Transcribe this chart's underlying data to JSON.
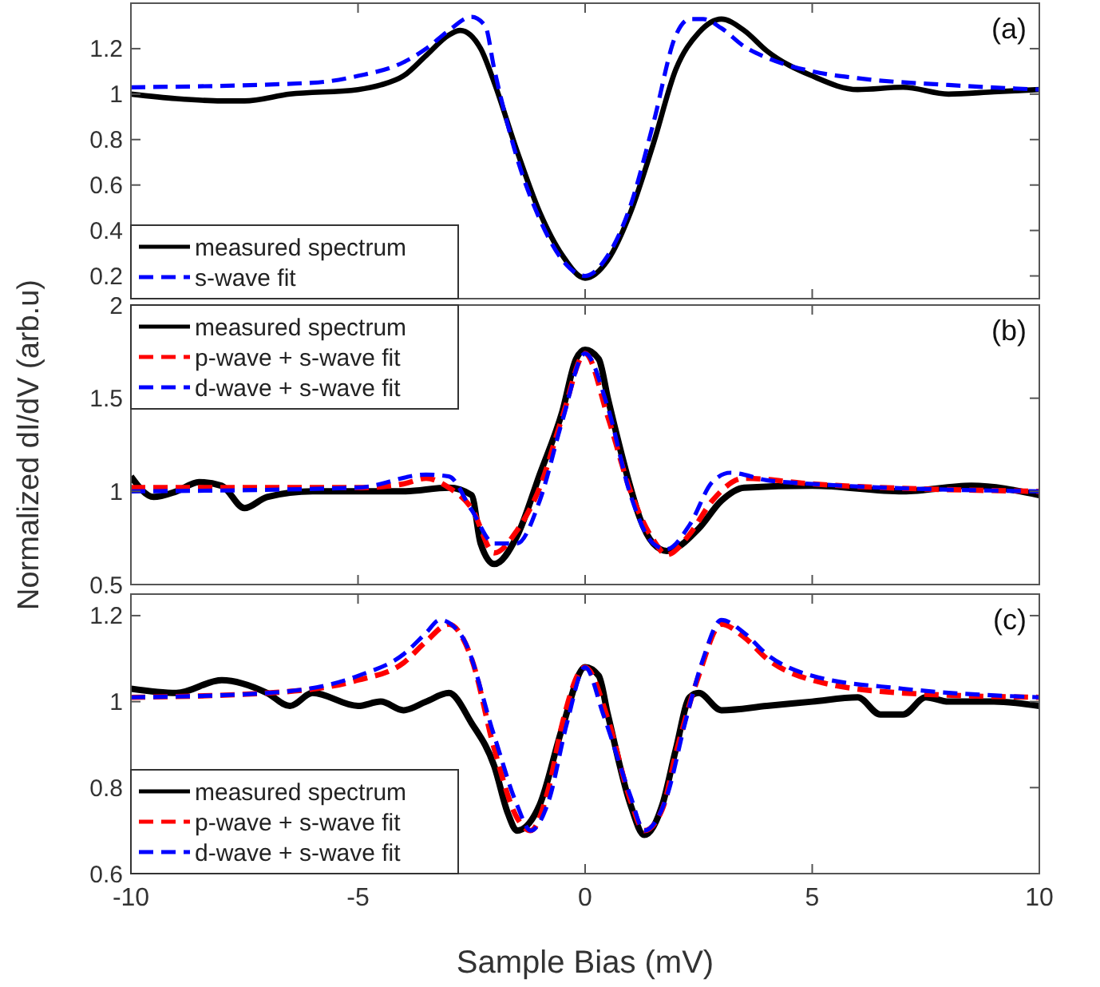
{
  "chart_data": [
    {
      "type": "line",
      "annotations": [
        "(a)"
      ],
      "xlim": [
        -10,
        10
      ],
      "xticks": [
        {
          "value": -5,
          "label": null
        },
        {
          "value": 0,
          "label": null
        },
        {
          "value": 5,
          "label": null
        }
      ],
      "ylim": [
        0.1,
        1.4
      ],
      "yticks": [
        0.2,
        0.4,
        0.6,
        0.8,
        {
          "value": 1,
          "label": "1"
        },
        1.2
      ],
      "tick_labels": "y",
      "legend": "bottom left",
      "grid": false,
      "series": [
        {
          "name": "measured spectrum",
          "color": "#000000",
          "line_style": "solid",
          "x": [
            -10,
            -9,
            -8,
            -7.5,
            -6.5,
            -5,
            -4.5,
            -4,
            -3.5,
            -3,
            -2.75,
            -2.3,
            -2,
            -1.5,
            -1,
            -0.5,
            0,
            0.5,
            1,
            1.5,
            2,
            2.5,
            3,
            3.5,
            4,
            5,
            6,
            7,
            8,
            9,
            10
          ],
          "values": [
            1.0,
            0.98,
            0.97,
            0.97,
            1.0,
            1.02,
            1.04,
            1.08,
            1.17,
            1.26,
            1.28,
            1.2,
            1.05,
            0.75,
            0.48,
            0.29,
            0.19,
            0.27,
            0.48,
            0.78,
            1.11,
            1.27,
            1.33,
            1.28,
            1.19,
            1.08,
            1.02,
            1.03,
            1.0,
            1.01,
            1.02
          ]
        },
        {
          "name": "s-wave fit",
          "color": "#0000ff",
          "line_style": "dashed",
          "x": [
            -10,
            -6,
            -5,
            -4,
            -3.5,
            -3,
            -2.5,
            -2.2,
            -2,
            -1.5,
            -1,
            -0.5,
            0,
            0.5,
            1,
            1.5,
            2,
            2.3,
            2.6,
            3,
            3.5,
            4,
            5,
            6,
            8,
            10
          ],
          "values": [
            1.03,
            1.05,
            1.08,
            1.14,
            1.2,
            1.28,
            1.34,
            1.3,
            1.11,
            0.72,
            0.45,
            0.27,
            0.2,
            0.29,
            0.51,
            0.87,
            1.26,
            1.33,
            1.33,
            1.29,
            1.21,
            1.16,
            1.1,
            1.07,
            1.04,
            1.02
          ]
        }
      ]
    },
    {
      "type": "line",
      "ylabel": "Normalized dI/dV (arb.u)",
      "annotations": [
        "(b)"
      ],
      "xlim": [
        -10,
        10
      ],
      "xticks": [
        {
          "value": -5,
          "label": null
        },
        {
          "value": 0,
          "label": null
        },
        {
          "value": 5,
          "label": null
        }
      ],
      "ylim": [
        0.5,
        2
      ],
      "yticks": [
        0.5,
        1,
        1.5,
        2
      ],
      "tick_labels": "y",
      "legend": "top left",
      "grid": false,
      "series": [
        {
          "name": "measured spectrum",
          "color": "#000000",
          "line_style": "solid",
          "x": [
            -10,
            -9.5,
            -9,
            -8.5,
            -8,
            -7.5,
            -7,
            -6,
            -4,
            -3,
            -2.5,
            -2.3,
            -2,
            -1.5,
            -1,
            -0.5,
            -0.2,
            0,
            0.3,
            0.5,
            1,
            1.2,
            1.5,
            1.8,
            2.5,
            3,
            3.5,
            5,
            7,
            8.5,
            10
          ],
          "values": [
            1.08,
            0.97,
            1.0,
            1.05,
            1.03,
            0.91,
            0.97,
            1.0,
            1.0,
            1.02,
            0.98,
            0.72,
            0.61,
            0.76,
            1.09,
            1.43,
            1.71,
            1.76,
            1.71,
            1.5,
            1.02,
            0.86,
            0.72,
            0.68,
            0.8,
            0.95,
            1.02,
            1.03,
            1.0,
            1.03,
            0.98
          ]
        },
        {
          "name": "p-wave + s-wave fit",
          "color": "#ff0000",
          "line_style": "dashed",
          "x": [
            -10,
            -5,
            -4,
            -3.5,
            -3,
            -2.5,
            -2,
            -1.5,
            -1,
            -0.5,
            0,
            0.5,
            1,
            1.5,
            1.8,
            2.3,
            2.8,
            3.5,
            5,
            10
          ],
          "values": [
            1.02,
            1.02,
            1.04,
            1.07,
            1.02,
            0.91,
            0.67,
            0.79,
            1.02,
            1.4,
            1.74,
            1.4,
            1.0,
            0.74,
            0.66,
            0.77,
            0.95,
            1.07,
            1.04,
            1.0
          ]
        },
        {
          "name": "d-wave + s-wave fit",
          "color": "#0000ff",
          "line_style": "dashed",
          "x": [
            -10,
            -5,
            -3.5,
            -3,
            -2.5,
            -2,
            -1.5,
            -1,
            -0.5,
            0,
            0.5,
            1,
            1.5,
            1.8,
            2.3,
            2.8,
            3.2,
            4,
            5,
            10
          ],
          "values": [
            1.0,
            1.02,
            1.09,
            1.08,
            0.9,
            0.72,
            0.72,
            0.95,
            1.38,
            1.74,
            1.45,
            0.98,
            0.72,
            0.69,
            0.82,
            1.05,
            1.1,
            1.06,
            1.04,
            1.0
          ]
        }
      ]
    },
    {
      "type": "line",
      "xlabel": "Sample Bias (mV)",
      "annotations": [
        "(c)"
      ],
      "xlim": [
        -10,
        10
      ],
      "xticks": [
        -10,
        -5,
        0,
        5,
        10
      ],
      "ylim": [
        0.6,
        1.25
      ],
      "yticks": [
        0.6,
        0.8,
        {
          "value": 1,
          "label": "1"
        },
        1.2
      ],
      "legend": "bottom left",
      "grid": false,
      "series": [
        {
          "name": "measured spectrum",
          "color": "#000000",
          "line_style": "solid",
          "x": [
            -10,
            -9,
            -8,
            -7,
            -6.5,
            -6,
            -5,
            -4.5,
            -4,
            -3.5,
            -3,
            -2.5,
            -2,
            -1.7,
            -1.5,
            -1,
            -0.5,
            0,
            0.3,
            0.5,
            1,
            1.3,
            1.7,
            2,
            2.3,
            2.5,
            3,
            4,
            5,
            6,
            6.5,
            7,
            7.5,
            8,
            9,
            10
          ],
          "values": [
            1.03,
            1.02,
            1.05,
            1.02,
            0.99,
            1.02,
            0.99,
            1.0,
            0.98,
            1.0,
            1.02,
            0.95,
            0.85,
            0.74,
            0.7,
            0.76,
            0.94,
            1.08,
            1.06,
            0.97,
            0.76,
            0.69,
            0.76,
            0.89,
            1.01,
            1.02,
            0.98,
            0.99,
            1.0,
            1.01,
            0.97,
            0.97,
            1.01,
            1.0,
            1.0,
            0.99
          ]
        },
        {
          "name": "p-wave + s-wave fit",
          "color": "#ff0000",
          "line_style": "dashed",
          "x": [
            -10,
            -7,
            -5,
            -4,
            -3.5,
            -3,
            -2.5,
            -2,
            -1.5,
            -1.2,
            -0.8,
            -0.5,
            0,
            0.5,
            1,
            1.3,
            1.7,
            2,
            2.5,
            3,
            3.5,
            4,
            5,
            7,
            10
          ],
          "values": [
            1.01,
            1.02,
            1.05,
            1.09,
            1.14,
            1.18,
            1.1,
            0.89,
            0.73,
            0.7,
            0.8,
            0.95,
            1.08,
            0.96,
            0.77,
            0.7,
            0.75,
            0.88,
            1.06,
            1.18,
            1.15,
            1.1,
            1.05,
            1.02,
            1.01
          ]
        },
        {
          "name": "d-wave + s-wave fit",
          "color": "#0000ff",
          "line_style": "dashed",
          "x": [
            -10,
            -7,
            -5,
            -4,
            -3.5,
            -3.2,
            -2.7,
            -2,
            -1.5,
            -1.2,
            -0.8,
            -0.4,
            0,
            0.4,
            1,
            1.3,
            1.8,
            2.2,
            2.6,
            3,
            3.5,
            4,
            5,
            7,
            10
          ],
          "values": [
            1.01,
            1.02,
            1.06,
            1.11,
            1.16,
            1.19,
            1.15,
            0.92,
            0.76,
            0.7,
            0.77,
            0.95,
            1.08,
            0.97,
            0.78,
            0.7,
            0.78,
            0.95,
            1.1,
            1.19,
            1.16,
            1.11,
            1.06,
            1.03,
            1.01
          ]
        }
      ]
    }
  ]
}
